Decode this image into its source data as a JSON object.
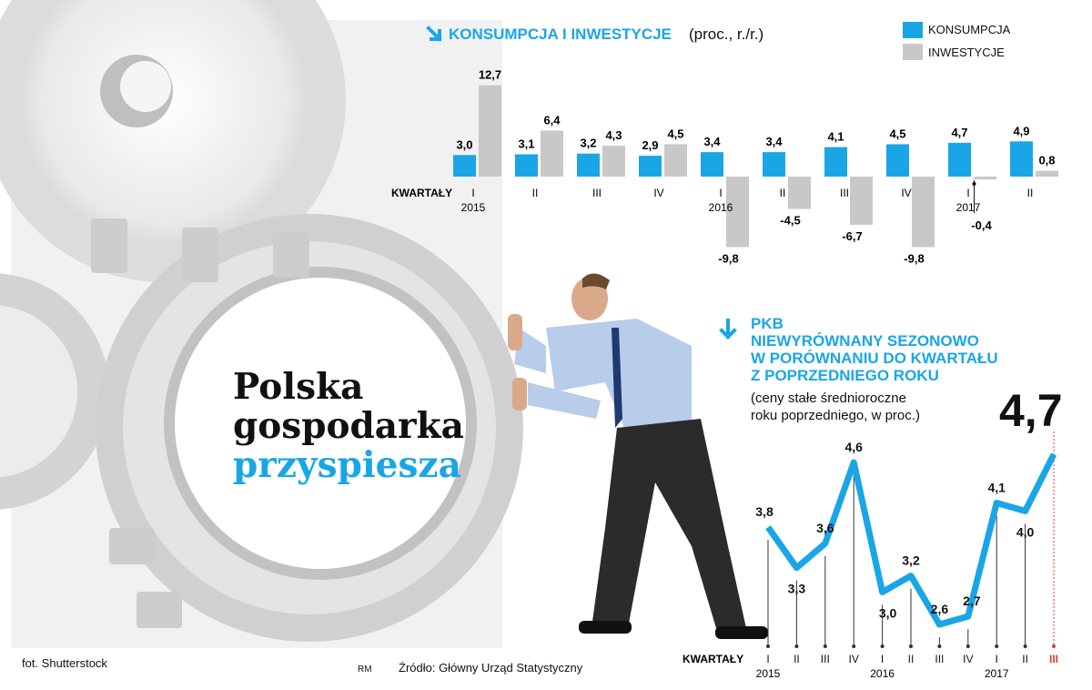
{
  "headline": {
    "line1": "Polska",
    "line2": "gospodarka",
    "line3": "przyspiesza"
  },
  "credit": "fot. Shutterstock",
  "author": "RM",
  "source": "Źródło: Główny Urząd Statystyczny",
  "colors": {
    "accent": "#1aa6e6",
    "grey": "#c8c8c8",
    "red": "#e53935"
  },
  "chart1": {
    "title": "KONSUMPCJA I INWESTYCJE",
    "unit": "(proc., r./r.)",
    "legend": [
      "KONSUMPCJA",
      "INWESTYCJE"
    ]
  },
  "chart2": {
    "title_lines": [
      "PKB",
      "NIEWYRÓWNANY SEZONOWO",
      "W PORÓWNANIU DO KWARTAŁU",
      "Z POPRZEDNIEGO ROKU"
    ],
    "subtitle_lines": [
      "(ceny stałe średnioroczne",
      "roku poprzedniego, w proc.)"
    ],
    "big_value": "4,7"
  },
  "chart_data": [
    {
      "type": "bar",
      "title": "KONSUMPCJA I INWESTYCJE",
      "subtitle": "(proc., r./r.)",
      "xlabel": "KWARTAŁY",
      "categories": [
        "I",
        "II",
        "III",
        "IV",
        "I",
        "II",
        "III",
        "IV",
        "I",
        "II"
      ],
      "year_labels": [
        {
          "index": 0,
          "label": "2015"
        },
        {
          "index": 4,
          "label": "2016"
        },
        {
          "index": 8,
          "label": "2017"
        }
      ],
      "series": [
        {
          "name": "KONSUMPCJA",
          "color": "#1aa6e6",
          "values": [
            3.0,
            3.1,
            3.2,
            2.9,
            3.4,
            3.4,
            4.1,
            4.5,
            4.7,
            4.9
          ],
          "labels": [
            "3,0",
            "3,1",
            "3,2",
            "2,9",
            "3,4",
            "3,4",
            "4,1",
            "4,5",
            "4,7",
            "4,9"
          ]
        },
        {
          "name": "INWESTYCJE",
          "color": "#c8c8c8",
          "values": [
            12.7,
            6.4,
            4.3,
            4.5,
            -9.8,
            -4.5,
            -6.7,
            -9.8,
            -0.4,
            0.8
          ],
          "labels": [
            "12,7",
            "6,4",
            "4,3",
            "4,5",
            "-9,8",
            "-4,5",
            "-6,7",
            "-9,8",
            "-0,4",
            "0,8"
          ]
        }
      ],
      "legend_position": "top-right"
    },
    {
      "type": "line",
      "title": "PKB NIEWYRÓWNANY SEZONOWO W PORÓWNANIU DO KWARTAŁU Z POPRZEDNIEGO ROKU",
      "subtitle": "(ceny stałe średnioroczne roku poprzedniego, w proc.)",
      "xlabel": "KWARTAŁY",
      "categories": [
        "I",
        "II",
        "III",
        "IV",
        "I",
        "II",
        "III",
        "IV",
        "I",
        "II",
        "III"
      ],
      "year_labels": [
        {
          "index": 0,
          "label": "2015"
        },
        {
          "index": 4,
          "label": "2016"
        },
        {
          "index": 8,
          "label": "2017"
        }
      ],
      "series": [
        {
          "values": [
            3.8,
            3.3,
            3.6,
            4.6,
            3.0,
            3.2,
            2.6,
            2.7,
            4.1,
            4.0,
            4.7
          ],
          "labels": [
            "3,8",
            "3,3",
            "3,6",
            "4,6",
            "3,0",
            "3,2",
            "2,6",
            "2,7",
            "4,1",
            "4,0",
            ""
          ]
        }
      ],
      "highlight_last": true
    }
  ]
}
